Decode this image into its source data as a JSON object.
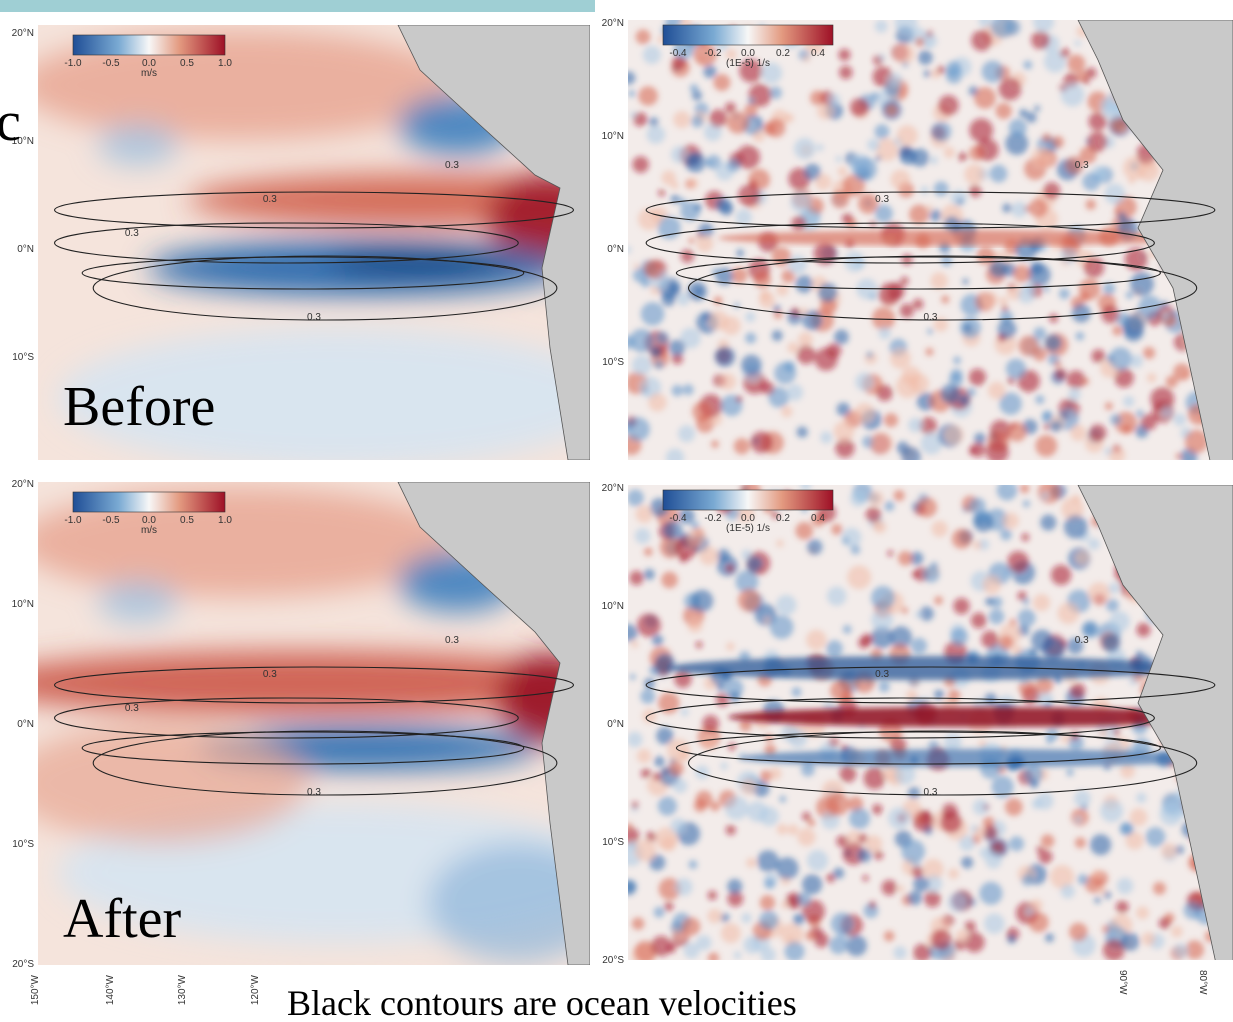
{
  "slide": {
    "fragment_text": "c",
    "caption": "Black contours are ocean velocities"
  },
  "panels": [
    {
      "label": "Before",
      "lat_labels": [
        "20°N",
        "10°N",
        "0°N",
        "10°S"
      ],
      "colorbar": {
        "ticks": [
          "-1.0",
          "-0.5",
          "0.0",
          "0.5",
          "1.0"
        ],
        "unit": "m/s"
      },
      "contour_labels": [
        "0.3",
        "0.3",
        "0.3",
        "0.3"
      ]
    },
    {
      "lat_labels": [
        "20°N",
        "10°N",
        "0°N",
        "10°S"
      ],
      "colorbar": {
        "ticks": [
          "-0.4",
          "-0.2",
          "0.0",
          "0.2",
          "0.4"
        ],
        "unit": "(1E-5) 1/s"
      },
      "contour_labels": [
        "0.3",
        "0.3",
        "0.3"
      ]
    },
    {
      "label": "After",
      "lat_labels": [
        "20°N",
        "10°N",
        "0°N",
        "10°S",
        "20°S"
      ],
      "colorbar": {
        "ticks": [
          "-1.0",
          "-0.5",
          "0.0",
          "0.5",
          "1.0"
        ],
        "unit": "m/s"
      },
      "contour_labels": [
        "0.3",
        "0.3",
        "0.3",
        "0.3"
      ]
    },
    {
      "lat_labels": [
        "20°N",
        "10°N",
        "0°N",
        "10°S",
        "20°S"
      ],
      "colorbar": {
        "ticks": [
          "-0.4",
          "-0.2",
          "0.0",
          "0.2",
          "0.4"
        ],
        "unit": "(1E-5) 1/s"
      },
      "contour_labels": [
        "0.3",
        "0.3",
        "0.3"
      ]
    }
  ],
  "lon_labels_left": [
    "150°W",
    "140°W",
    "130°W",
    "120°W"
  ],
  "lon_labels_right": [
    "90°W",
    "80°W"
  ]
}
